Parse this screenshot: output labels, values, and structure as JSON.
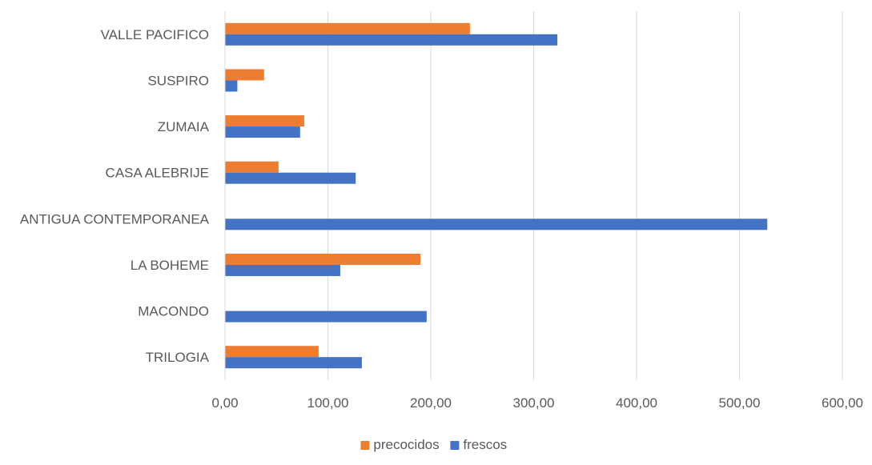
{
  "chart_data": {
    "type": "bar",
    "orientation": "horizontal",
    "title": "",
    "xlabel": "",
    "ylabel": "",
    "categories": [
      "VALLE PACIFICO",
      "SUSPIRO",
      "ZUMAIA",
      "CASA ALEBRIJE",
      "ANTIGUA CONTEMPORANEA",
      "LA BOHEME",
      "MACONDO",
      "TRILOGIA"
    ],
    "series": [
      {
        "name": "precocidos",
        "color": "#ED7D31",
        "values": [
          238,
          38,
          77,
          52,
          0,
          190,
          0,
          91
        ]
      },
      {
        "name": "frescos",
        "color": "#4472C4",
        "values": [
          323,
          12,
          73,
          127,
          527,
          112,
          196,
          133
        ]
      }
    ],
    "xlim": [
      0,
      600
    ],
    "xticks": [
      0,
      100,
      200,
      300,
      400,
      500,
      600
    ],
    "xtick_labels": [
      "0,00",
      "100,00",
      "200,00",
      "300,00",
      "400,00",
      "500,00",
      "600,00"
    ],
    "grid": "vertical",
    "legend": "bottom-center",
    "legend_entries": [
      "precocidos",
      "frescos"
    ]
  }
}
